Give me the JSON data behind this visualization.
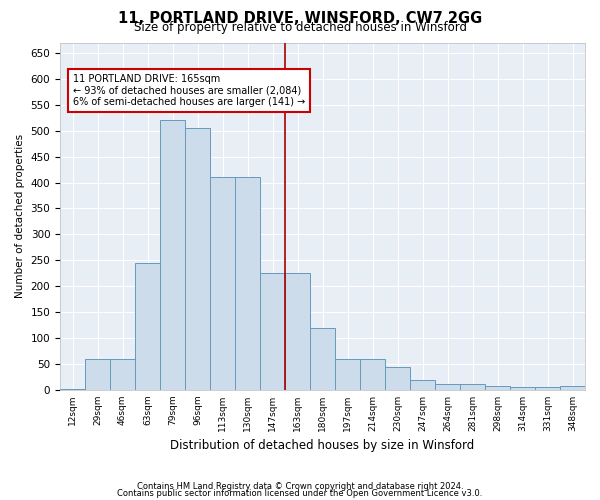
{
  "title": "11, PORTLAND DRIVE, WINSFORD, CW7 2GG",
  "subtitle": "Size of property relative to detached houses in Winsford",
  "xlabel": "Distribution of detached houses by size in Winsford",
  "ylabel": "Number of detached properties",
  "bar_color": "#ccdcea",
  "bar_edge_color": "#6699bb",
  "background_color": "#e8eef6",
  "grid_color": "#ffffff",
  "categories": [
    "12sqm",
    "29sqm",
    "46sqm",
    "63sqm",
    "79sqm",
    "96sqm",
    "113sqm",
    "130sqm",
    "147sqm",
    "163sqm",
    "180sqm",
    "197sqm",
    "214sqm",
    "230sqm",
    "247sqm",
    "264sqm",
    "281sqm",
    "298sqm",
    "314sqm",
    "331sqm",
    "348sqm"
  ],
  "bar_values": [
    2,
    60,
    60,
    245,
    520,
    505,
    410,
    410,
    225,
    225,
    120,
    60,
    60,
    45,
    20,
    12,
    12,
    7,
    5,
    5,
    7
  ],
  "ylim": [
    0,
    670
  ],
  "yticks": [
    0,
    50,
    100,
    150,
    200,
    250,
    300,
    350,
    400,
    450,
    500,
    550,
    600,
    650
  ],
  "vline_idx": 9,
  "vline_color": "#aa0000",
  "annotation_title": "11 PORTLAND DRIVE: 165sqm",
  "annotation_line1": "← 93% of detached houses are smaller (2,084)",
  "annotation_line2": "6% of semi-detached houses are larger (141) →",
  "footer1": "Contains HM Land Registry data © Crown copyright and database right 2024.",
  "footer2": "Contains public sector information licensed under the Open Government Licence v3.0."
}
